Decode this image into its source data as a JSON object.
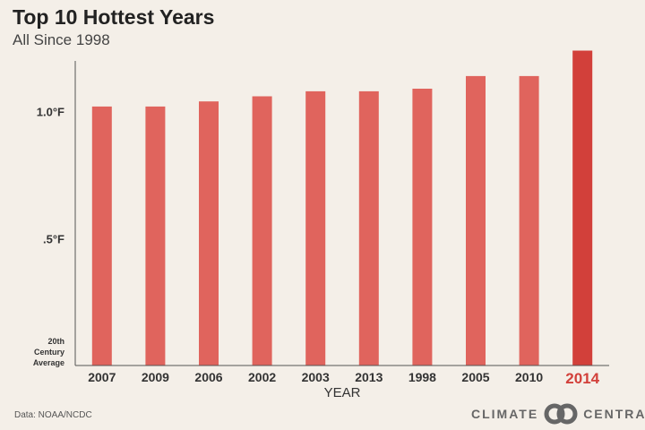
{
  "header": {
    "title": "Top 10 Hottest Years",
    "subtitle": "All Since 1998"
  },
  "footer": {
    "source": "Data: NOAA/NCDC",
    "logo_left": "CLIMATE",
    "logo_right": "CENTRAL"
  },
  "colors": {
    "bar": "#e0645d",
    "highlight": "#d2403a",
    "background": "#f4efe8"
  },
  "chart_data": {
    "type": "bar",
    "title": "Top 10 Hottest Years",
    "subtitle": "All Since 1998",
    "xlabel": "YEAR",
    "ylabel": "",
    "categories": [
      "2007",
      "2009",
      "2006",
      "2002",
      "2003",
      "2013",
      "1998",
      "2005",
      "2010",
      "2014"
    ],
    "values": [
      1.02,
      1.02,
      1.04,
      1.06,
      1.08,
      1.08,
      1.09,
      1.14,
      1.14,
      1.24
    ],
    "highlight": "2014",
    "ylim": [
      0,
      1.27
    ],
    "yticks": [
      {
        "value": 1.0,
        "label": "1.0°F"
      },
      {
        "value": 0.5,
        "label": ".5°F"
      }
    ],
    "baseline_label": [
      "20th",
      "Century",
      "Average"
    ],
    "grid": false,
    "legend": "none"
  }
}
